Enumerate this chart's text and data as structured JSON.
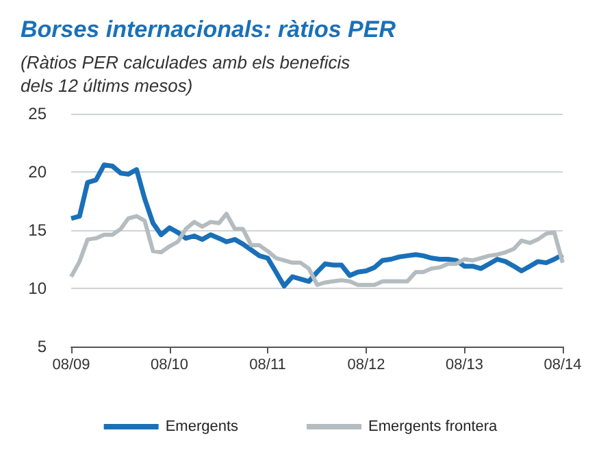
{
  "chart_data": {
    "type": "line",
    "title": "Borses internacionals: ràtios PER",
    "subtitle": "(Ràtios PER calculades amb els beneficis dels 12 últims mesos)",
    "x": [
      "2009-08",
      "2009-09",
      "2009-10",
      "2009-11",
      "2009-12",
      "2010-01",
      "2010-02",
      "2010-03",
      "2010-04",
      "2010-05",
      "2010-06",
      "2010-07",
      "2010-08",
      "2010-09",
      "2010-10",
      "2010-11",
      "2010-12",
      "2011-01",
      "2011-02",
      "2011-03",
      "2011-04",
      "2011-05",
      "2011-06",
      "2011-07",
      "2011-08",
      "2011-09",
      "2011-10",
      "2011-11",
      "2011-12",
      "2012-01",
      "2012-02",
      "2012-03",
      "2012-04",
      "2012-05",
      "2012-06",
      "2012-07",
      "2012-08",
      "2012-09",
      "2012-10",
      "2012-11",
      "2012-12",
      "2013-01",
      "2013-02",
      "2013-03",
      "2013-04",
      "2013-05",
      "2013-06",
      "2013-07",
      "2013-08",
      "2013-09",
      "2013-10",
      "2013-11",
      "2013-12",
      "2014-01",
      "2014-02",
      "2014-03",
      "2014-04",
      "2014-05",
      "2014-06",
      "2014-07",
      "2014-08"
    ],
    "series": [
      {
        "name": "Emergents",
        "color": "#1a70b8",
        "values": [
          16.0,
          16.2,
          19.1,
          19.3,
          20.6,
          20.5,
          19.9,
          19.8,
          20.2,
          17.7,
          15.6,
          14.6,
          15.2,
          14.8,
          14.3,
          14.5,
          14.2,
          14.6,
          14.3,
          14.0,
          14.2,
          13.8,
          13.3,
          12.8,
          12.6,
          11.4,
          10.2,
          11.0,
          10.8,
          10.6,
          11.4,
          12.1,
          12.0,
          12.0,
          11.1,
          11.4,
          11.5,
          11.8,
          12.4,
          12.5,
          12.7,
          12.8,
          12.9,
          12.8,
          12.6,
          12.5,
          12.5,
          12.4,
          11.9,
          11.9,
          11.7,
          12.1,
          12.5,
          12.3,
          11.9,
          11.5,
          11.9,
          12.3,
          12.2,
          12.5,
          12.9
        ]
      },
      {
        "name": "Emergents frontera",
        "color": "#b4bcc0",
        "values": [
          11.0,
          12.3,
          14.2,
          14.3,
          14.6,
          14.6,
          15.1,
          16.0,
          16.2,
          15.8,
          13.2,
          13.1,
          13.6,
          14.0,
          15.1,
          15.7,
          15.3,
          15.7,
          15.6,
          16.4,
          15.1,
          15.1,
          13.7,
          13.7,
          13.2,
          12.6,
          12.4,
          12.2,
          12.2,
          11.7,
          10.3,
          10.5,
          10.6,
          10.7,
          10.6,
          10.3,
          10.3,
          10.3,
          10.6,
          10.6,
          10.6,
          10.6,
          11.4,
          11.4,
          11.7,
          11.8,
          12.1,
          12.1,
          12.5,
          12.4,
          12.6,
          12.8,
          12.9,
          13.1,
          13.4,
          14.1,
          13.9,
          14.2,
          14.7,
          14.8,
          12.2
        ]
      }
    ],
    "xlim": [
      "2009-08",
      "2014-08"
    ],
    "xticks": [
      {
        "value": "2009-08",
        "label": "08/09"
      },
      {
        "value": "2010-08",
        "label": "08/10"
      },
      {
        "value": "2011-08",
        "label": "08/11"
      },
      {
        "value": "2012-08",
        "label": "08/12"
      },
      {
        "value": "2013-08",
        "label": "08/13"
      },
      {
        "value": "2014-08",
        "label": "08/14"
      }
    ],
    "ylim": [
      5,
      25
    ],
    "yticks": [
      5,
      10,
      15,
      20,
      25
    ],
    "grid": "y",
    "legend": "bottom",
    "marker": "none",
    "line_style": "solid"
  }
}
